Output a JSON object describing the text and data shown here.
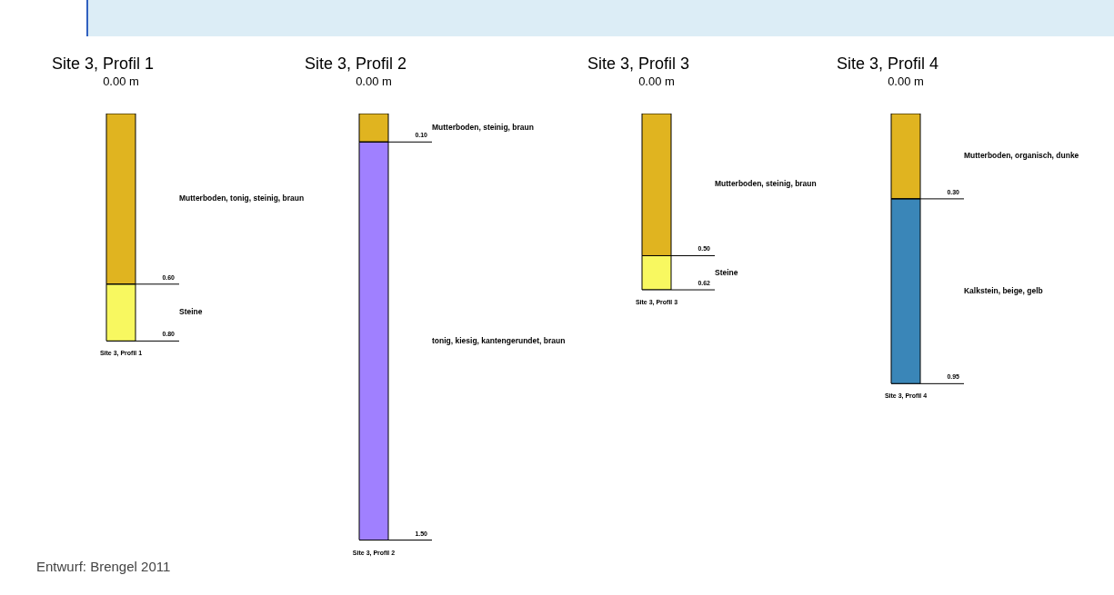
{
  "chart_data": [
    {
      "type": "bar",
      "title": "Site 3, Profil 1",
      "categories": [
        "Site 3, Profil 1"
      ],
      "stacked": true,
      "ylim": [
        0.8,
        0
      ],
      "tick_labels": "x",
      "series": [
        {
          "name": "Mutterboden, tonig, steinig, braun",
          "color": "#e0b420",
          "values": [
            0.6
          ]
        },
        {
          "name": "Steine",
          "color": "#f8f860",
          "values": [
            0.2
          ]
        }
      ],
      "ref_lines": [
        {
          "axis": "y",
          "value": 0.6,
          "label": "0.60"
        },
        {
          "axis": "y",
          "value": 0.8,
          "label": "0.80"
        }
      ],
      "annotations": [
        "0.00 m",
        "Entwurf: Brengel 2011"
      ]
    },
    {
      "type": "bar",
      "title": "Site 3, Profil 2",
      "categories": [
        "Site 3, Profil 2"
      ],
      "stacked": true,
      "ylim": [
        1.5,
        0
      ],
      "tick_labels": "x",
      "series": [
        {
          "name": "Mutterboden, steinig, braun",
          "color": "#e0b420",
          "values": [
            0.1
          ]
        },
        {
          "name": "tonig, kiesig, kantengerundet, braun",
          "color": "#a080ff",
          "values": [
            1.4
          ]
        }
      ],
      "ref_lines": [
        {
          "axis": "y",
          "value": 0.1,
          "label": "0.10"
        },
        {
          "axis": "y",
          "value": 1.5,
          "label": "1.50"
        }
      ],
      "annotations": [
        "0.00 m"
      ]
    },
    {
      "type": "bar",
      "title": "Site 3, Profil 3",
      "categories": [
        "Site 3, Profil 3"
      ],
      "stacked": true,
      "ylim": [
        0.62,
        0
      ],
      "tick_labels": "x",
      "series": [
        {
          "name": "Mutterboden, steinig, braun",
          "color": "#e0b420",
          "values": [
            0.5
          ]
        },
        {
          "name": "Steine",
          "color": "#f8f860",
          "values": [
            0.12
          ]
        }
      ],
      "ref_lines": [
        {
          "axis": "y",
          "value": 0.5,
          "label": "0.50"
        },
        {
          "axis": "y",
          "value": 0.62,
          "label": "0.62"
        }
      ],
      "annotations": [
        "0.00 m"
      ]
    },
    {
      "type": "bar",
      "title": "Site 3, Profil 4",
      "categories": [
        "Site 3, Profil 4"
      ],
      "stacked": true,
      "ylim": [
        0.95,
        0
      ],
      "tick_labels": "x",
      "series": [
        {
          "name": "Mutterboden, organisch, dunke",
          "color": "#e0b420",
          "values": [
            0.3
          ]
        },
        {
          "name": "Kalkstein, beige, gelb",
          "color": "#3a86b8",
          "values": [
            0.65
          ]
        }
      ],
      "ref_lines": [
        {
          "axis": "y",
          "value": 0.3,
          "label": "0.30"
        },
        {
          "axis": "y",
          "value": 0.95,
          "label": "0.95"
        }
      ],
      "annotations": [
        "0.00 m"
      ]
    }
  ]
}
